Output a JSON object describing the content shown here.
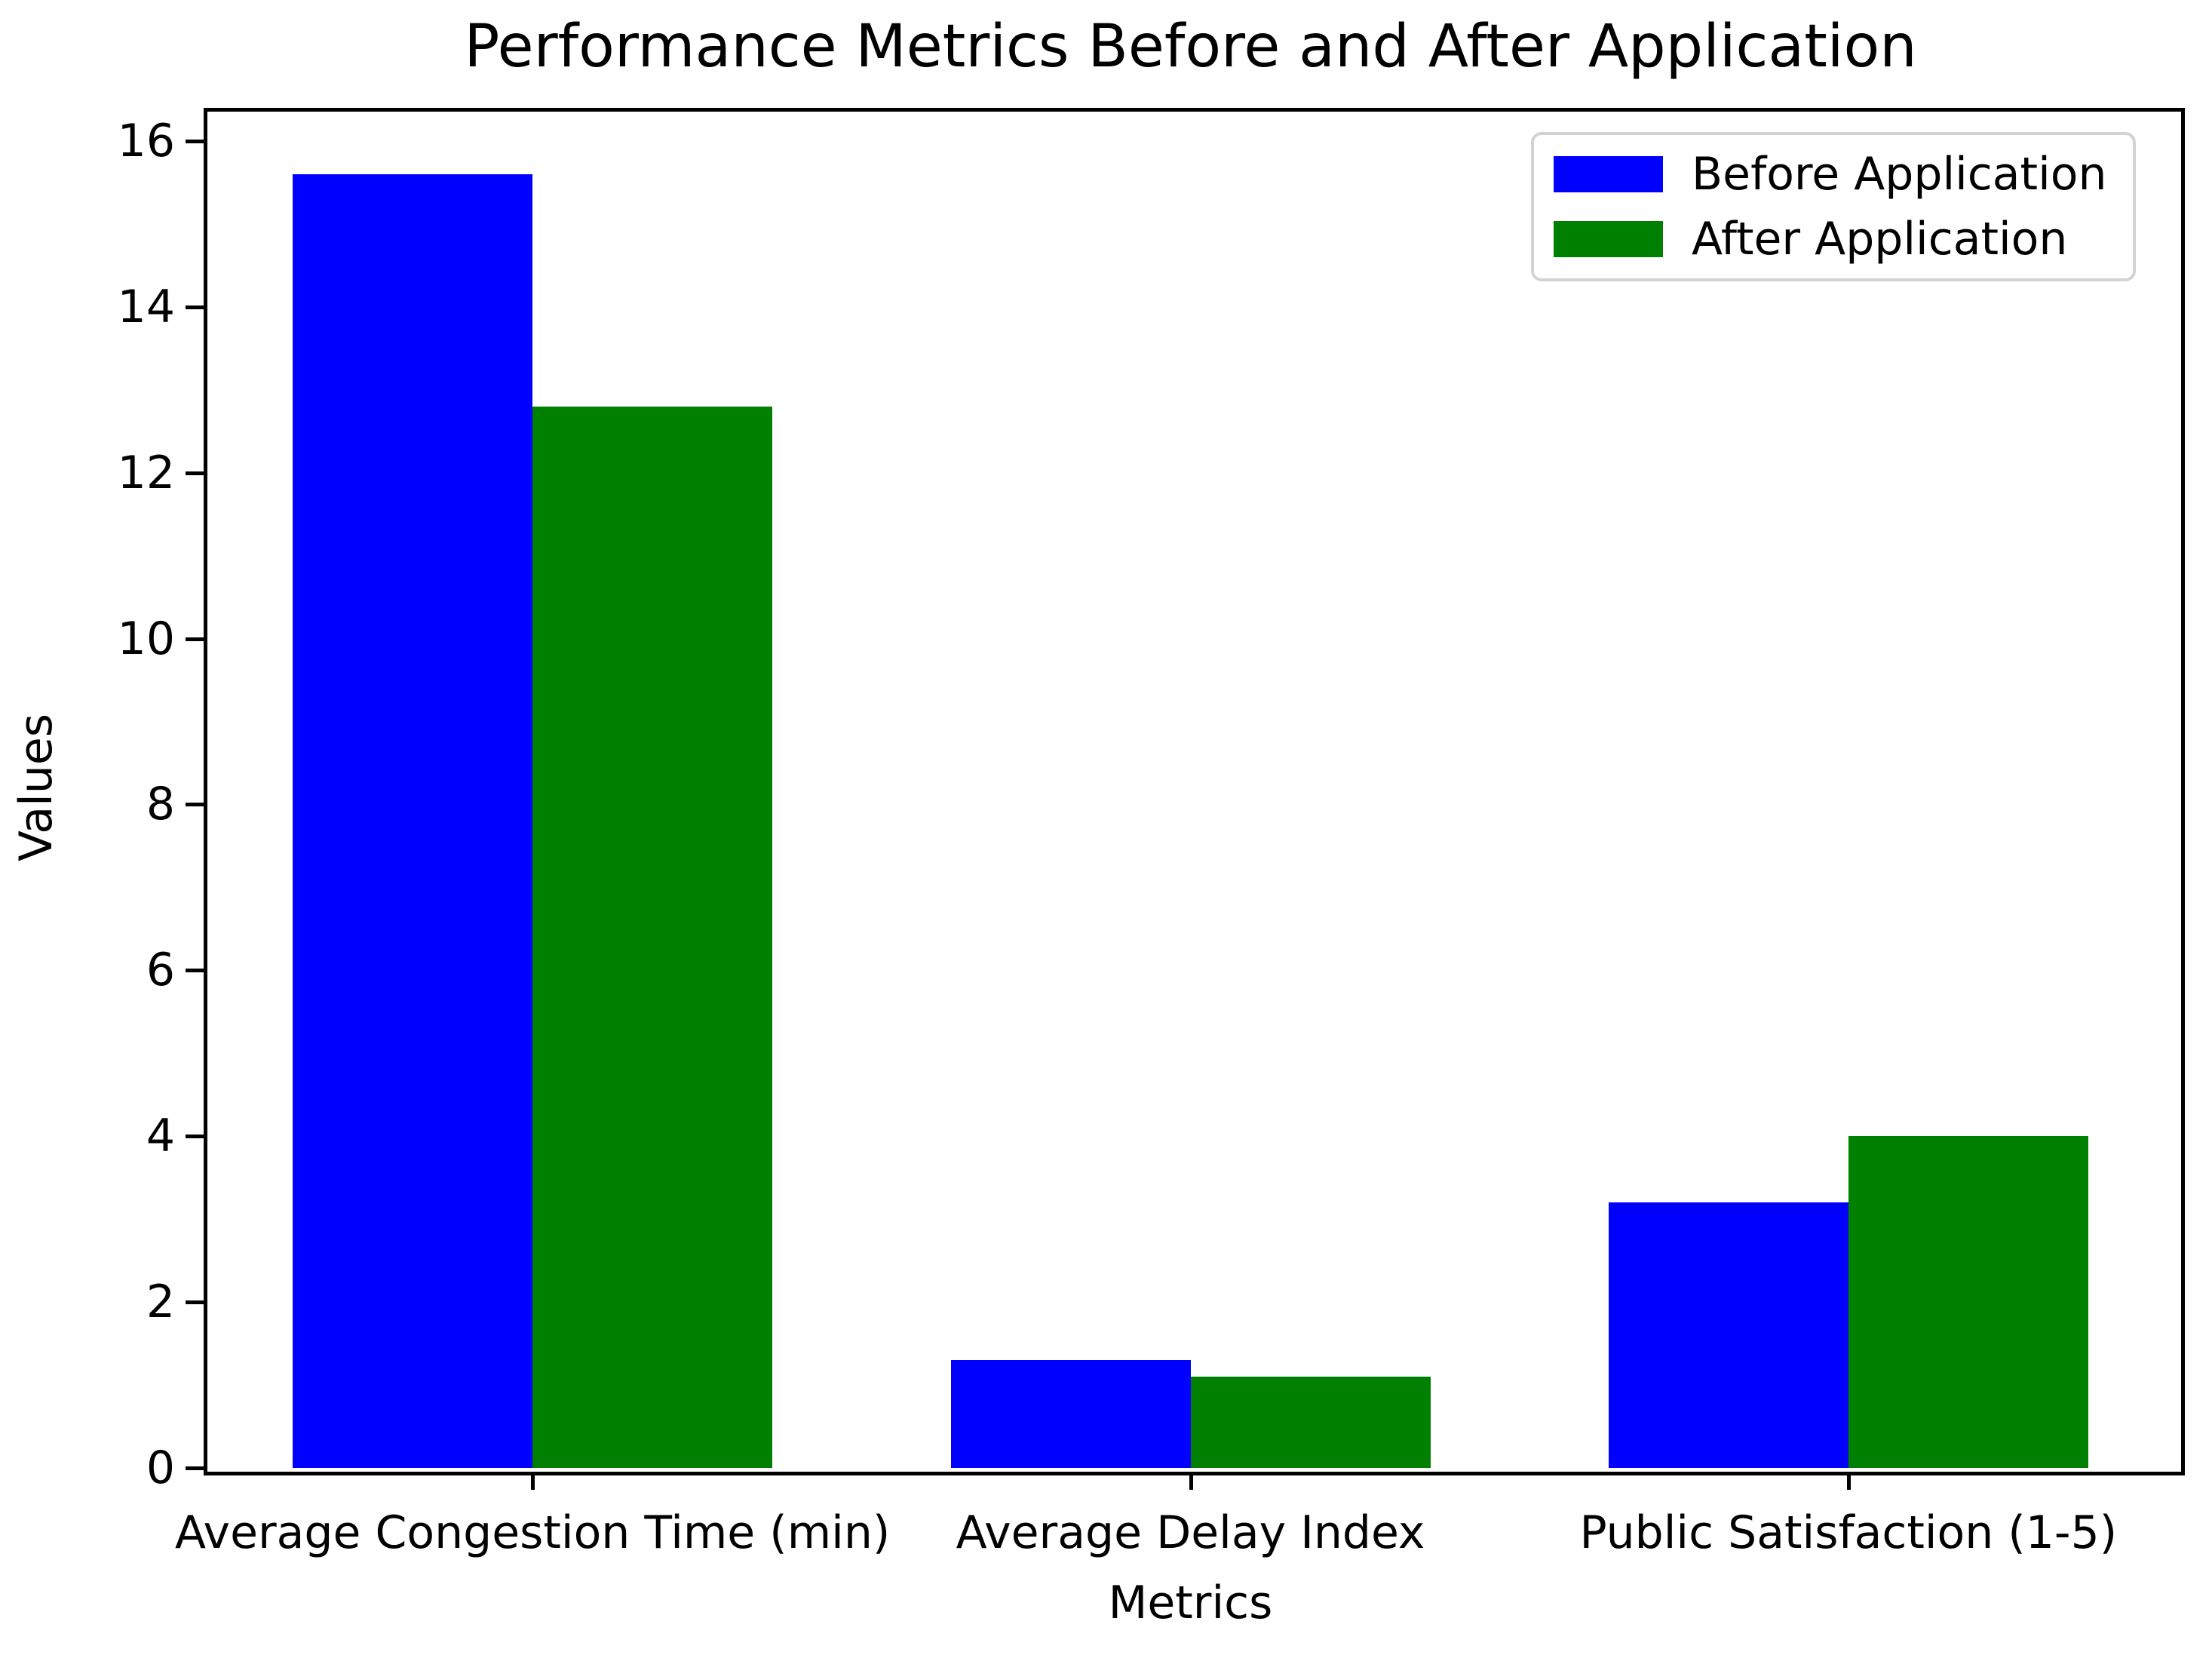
{
  "figure": {
    "background": "#ffffff",
    "spine_color": "#000000",
    "legend_border_color": "#d3d3d3"
  },
  "chart_data": {
    "type": "bar",
    "title": "Performance Metrics Before and After Application",
    "xlabel": "Metrics",
    "ylabel": "Values",
    "categories": [
      "Average Congestion Time (min)",
      "Average Delay Index",
      "Public Satisfaction (1-5)"
    ],
    "series": [
      {
        "name": "Before Application",
        "color": "#0000ff",
        "values": [
          15.6,
          1.3,
          3.2
        ]
      },
      {
        "name": "After Application",
        "color": "#008000",
        "values": [
          12.8,
          1.1,
          4.0
        ]
      }
    ],
    "ylim": [
      0,
      16.4
    ],
    "yticks": [
      0,
      2,
      4,
      6,
      8,
      10,
      12,
      14,
      16
    ],
    "grid": false,
    "legend_position": "upper right"
  }
}
